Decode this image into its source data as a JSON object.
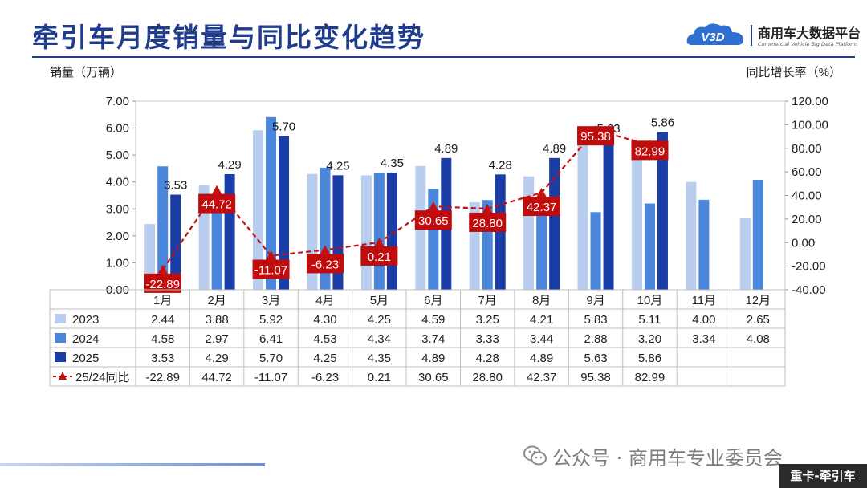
{
  "title": "牵引车月度销量与同比变化趋势",
  "brand": {
    "logo_text": "V3D",
    "name_cn": "商用车大数据平台",
    "name_en": "Commercial Vehicle Big Data Platform"
  },
  "watermark": {
    "text": "公众号 · 商用车专业委员会",
    "icon": "wechat-icon"
  },
  "tag": "重卡-牵引车",
  "chart_data": {
    "type": "bar",
    "categories": [
      "1月",
      "2月",
      "3月",
      "4月",
      "5月",
      "6月",
      "7月",
      "8月",
      "9月",
      "10月",
      "11月",
      "12月"
    ],
    "series": [
      {
        "name": "2023",
        "color": "#b9cdef",
        "values": [
          2.44,
          3.88,
          5.92,
          4.3,
          4.25,
          4.59,
          3.25,
          4.21,
          5.83,
          5.11,
          4.0,
          2.65
        ]
      },
      {
        "name": "2024",
        "color": "#4a86dc",
        "values": [
          4.58,
          2.97,
          6.41,
          4.53,
          4.34,
          3.74,
          3.33,
          3.44,
          2.88,
          3.2,
          3.34,
          4.08
        ]
      },
      {
        "name": "2025",
        "color": "#1b3da6",
        "values": [
          3.53,
          4.29,
          5.7,
          4.25,
          4.35,
          4.89,
          4.28,
          4.89,
          5.63,
          5.86,
          null,
          null
        ]
      }
    ],
    "line_series": {
      "name": "25/24同比",
      "color": "#c80f0f",
      "values": [
        -22.89,
        44.72,
        -11.07,
        -6.23,
        0.21,
        30.65,
        28.8,
        42.37,
        95.38,
        82.99,
        null,
        null
      ]
    },
    "bar_labels": [
      "3.53",
      "4.29",
      "5.70",
      "4.25",
      "4.35",
      "4.89",
      "4.28",
      "4.89",
      "5.63",
      "5.86"
    ],
    "line_labels": [
      "-22.89",
      "44.72",
      "-11.07",
      "-6.23",
      "0.21",
      "30.65",
      "28.80",
      "42.37",
      "95.38",
      "82.99"
    ],
    "ylabel": "销量（万辆）",
    "y2label": "同比增长率（%）",
    "ylim": [
      0,
      7
    ],
    "y2lim": [
      -40,
      120
    ],
    "yticks": [
      "0.00",
      "1.00",
      "2.00",
      "3.00",
      "4.00",
      "5.00",
      "6.00",
      "7.00"
    ],
    "y2ticks": [
      "-40.00",
      "-20.00",
      "0.00",
      "20.00",
      "40.00",
      "60.00",
      "80.00",
      "100.00",
      "120.00"
    ],
    "table": {
      "rows": [
        {
          "label": "2023",
          "cells": [
            "2.44",
            "3.88",
            "5.92",
            "4.30",
            "4.25",
            "4.59",
            "3.25",
            "4.21",
            "5.83",
            "5.11",
            "4.00",
            "2.65"
          ]
        },
        {
          "label": "2024",
          "cells": [
            "4.58",
            "2.97",
            "6.41",
            "4.53",
            "4.34",
            "3.74",
            "3.33",
            "3.44",
            "2.88",
            "3.20",
            "3.34",
            "4.08"
          ]
        },
        {
          "label": "2025",
          "cells": [
            "3.53",
            "4.29",
            "5.70",
            "4.25",
            "4.35",
            "4.89",
            "4.28",
            "4.89",
            "5.63",
            "5.86",
            "",
            ""
          ]
        },
        {
          "label": "25/24同比",
          "cells": [
            "-22.89",
            "44.72",
            "-11.07",
            "-6.23",
            "0.21",
            "30.65",
            "28.80",
            "42.37",
            "95.38",
            "82.99",
            "",
            ""
          ]
        }
      ]
    }
  }
}
